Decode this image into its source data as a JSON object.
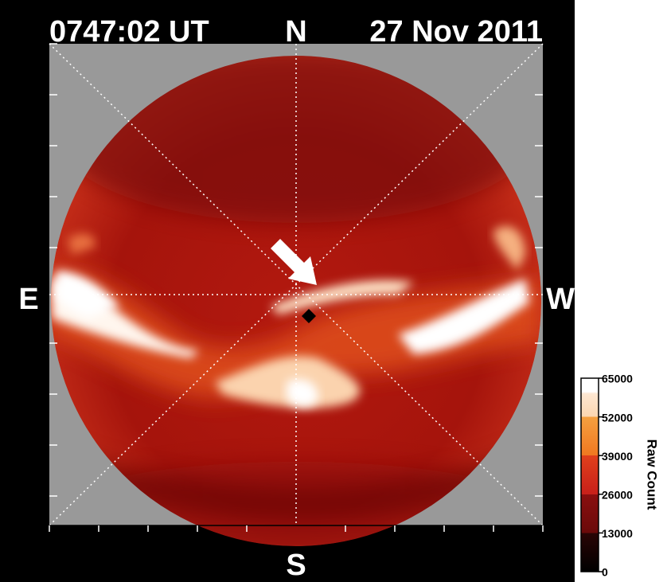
{
  "header": {
    "time": "0747:02 UT",
    "date": "27 Nov 2011"
  },
  "directions": {
    "north": "N",
    "south": "S",
    "east": "E",
    "west": "W"
  },
  "colorbar": {
    "label": "Raw Count",
    "range": [
      0,
      65000
    ],
    "ticks": [
      0,
      13000,
      26000,
      39000,
      52000,
      65000
    ]
  }
}
